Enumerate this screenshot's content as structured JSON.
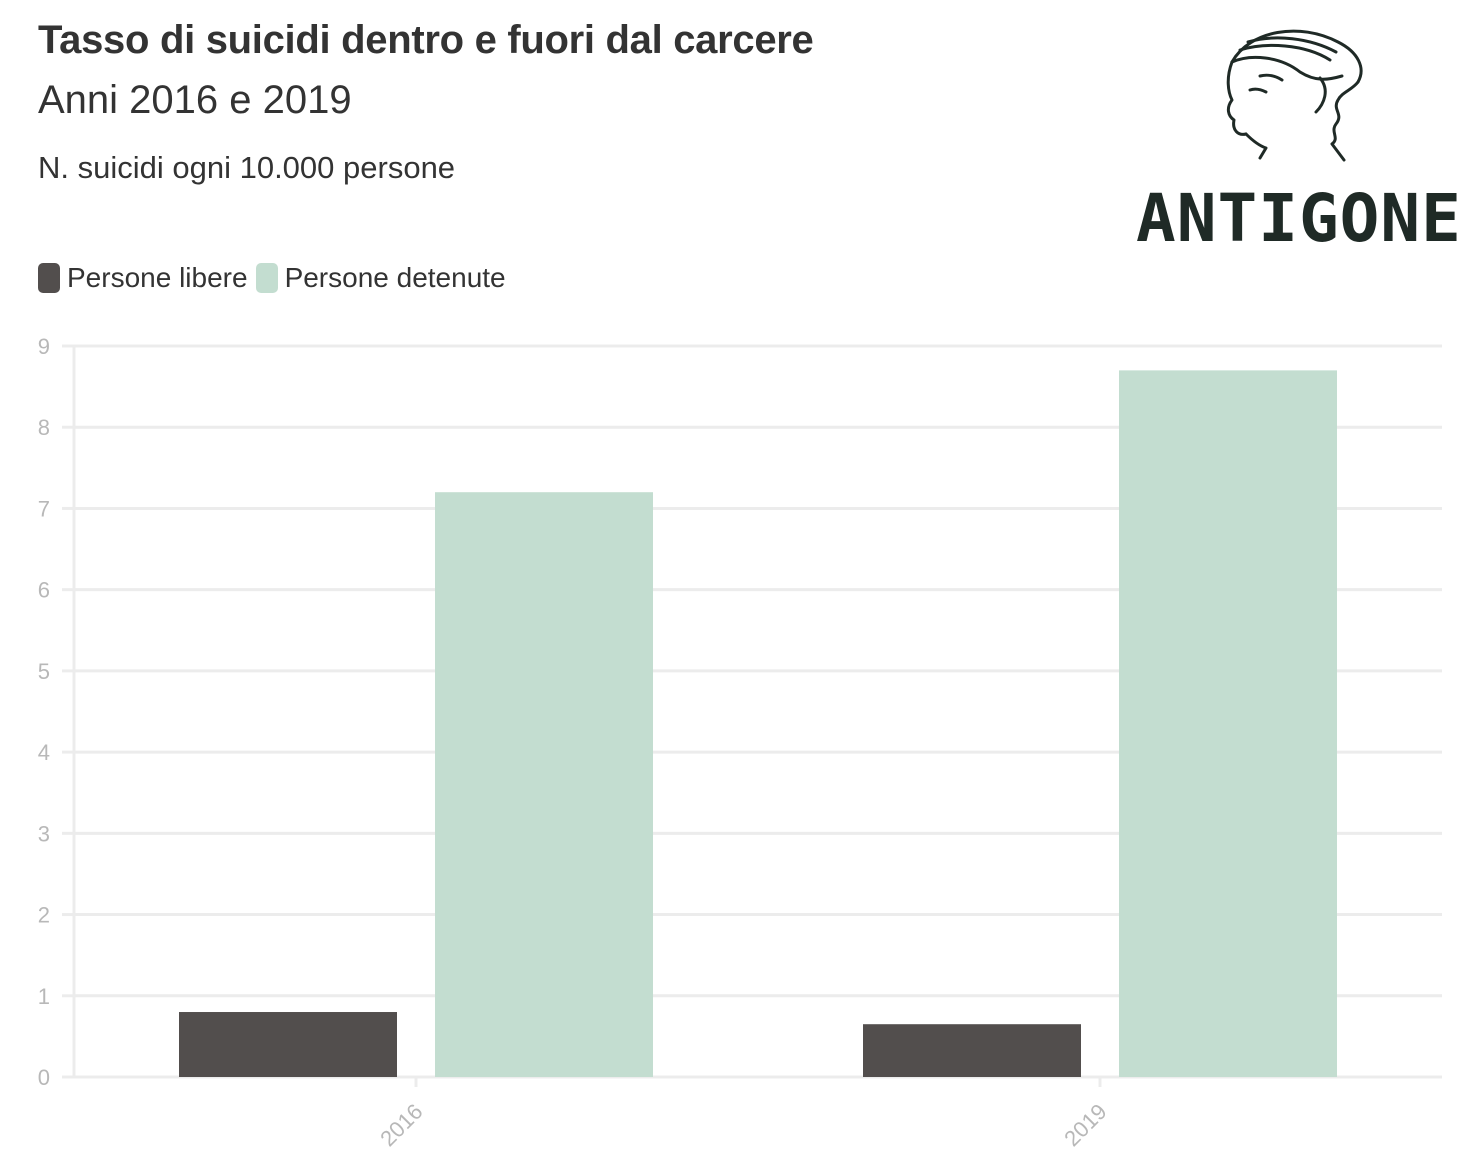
{
  "header": {
    "title": "Tasso di suicidi dentro e fuori dal carcere",
    "subtitle": "Anni 2016 e 2019",
    "description": "N. suicidi ogni 10.000 persone"
  },
  "logo": {
    "text": "ANTIGONE"
  },
  "colors": {
    "persone_libere": "#524e4d",
    "persone_detenute": "#c3ddd0",
    "grid": "#ececec",
    "tick_label": "#b8b8b8"
  },
  "chart_data": {
    "type": "bar",
    "title": "Tasso di suicidi dentro e fuori dal carcere",
    "subtitle": "Anni 2016 e 2019",
    "ylabel": "N. suicidi ogni 10.000 persone",
    "xlabel": "",
    "categories": [
      "2016",
      "2019"
    ],
    "series": [
      {
        "name": "Persone libere",
        "values": [
          0.8,
          0.65
        ]
      },
      {
        "name": "Persone detenute",
        "values": [
          7.2,
          8.7
        ]
      }
    ],
    "ylim": [
      0,
      9
    ],
    "yticks": [
      0,
      1,
      2,
      3,
      4,
      5,
      6,
      7,
      8,
      9
    ],
    "grid": true,
    "legend_position": "top-left"
  }
}
